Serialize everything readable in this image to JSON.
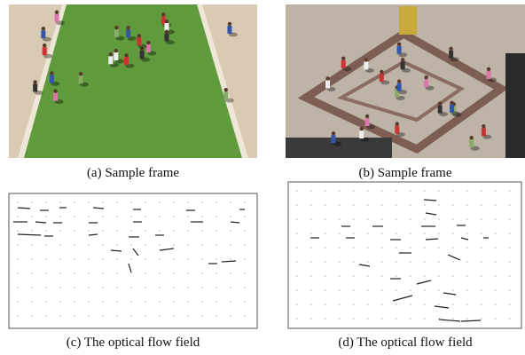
{
  "panels": [
    {
      "caption": "(a) Sample frame"
    },
    {
      "caption": "(b) Sample frame"
    },
    {
      "caption": "(c) The optical flow field"
    },
    {
      "caption": "(d) The optical flow field"
    }
  ]
}
